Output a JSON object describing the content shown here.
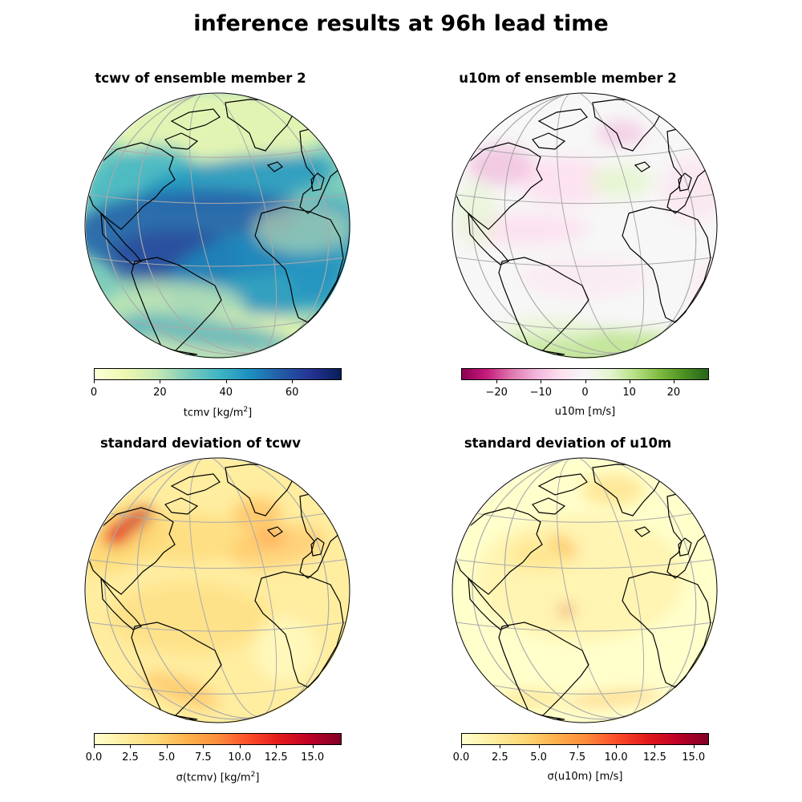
{
  "suptitle": "inference results at 96h lead time",
  "panels": [
    {
      "title": "tcwv of ensemble member 2",
      "cmap": "YlGnBu",
      "colorbar": {
        "min": 0,
        "max": 75,
        "ticks": [
          0,
          20,
          40,
          60
        ],
        "tick_labels": [
          "0",
          "20",
          "40",
          "60"
        ],
        "label": "tcmv [kg/m",
        "label_sup": "2",
        "label_suffix": "]",
        "colors": [
          "#ffffd9",
          "#edf8b1",
          "#c7e9b4",
          "#7fcdbb",
          "#41b6c4",
          "#1d91c0",
          "#225ea8",
          "#253494",
          "#081d58"
        ]
      }
    },
    {
      "title": "u10m of ensemble member 2",
      "cmap": "PiYG",
      "colorbar": {
        "min": -28,
        "max": 28,
        "ticks": [
          -20,
          -10,
          0,
          10,
          20
        ],
        "tick_labels": [
          "−20",
          "−10",
          "0",
          "10",
          "20"
        ],
        "label": "u10m [m/s]",
        "label_sup": "",
        "label_suffix": "",
        "colors": [
          "#8e0152",
          "#c51b7d",
          "#de77ae",
          "#f1b6da",
          "#fde0ef",
          "#f7f7f7",
          "#e6f5d0",
          "#b8e186",
          "#7fbc41",
          "#4d9221",
          "#276419"
        ]
      }
    },
    {
      "title": "standard deviation of tcwv",
      "cmap": "YlOrRd",
      "colorbar": {
        "min": 0,
        "max": 17,
        "ticks": [
          0,
          2.5,
          5,
          7.5,
          10,
          12.5,
          15
        ],
        "tick_labels": [
          "0.0",
          "2.5",
          "5.0",
          "7.5",
          "10.0",
          "12.5",
          "15.0"
        ],
        "label": "σ(tcmv) [kg/m",
        "label_sup": "2",
        "label_suffix": "]",
        "colors": [
          "#ffffcc",
          "#ffeda0",
          "#fed976",
          "#feb24c",
          "#fd8d3c",
          "#fc4e2a",
          "#e31a1c",
          "#bd0026",
          "#800026"
        ]
      }
    },
    {
      "title": "standard deviation of u10m",
      "cmap": "YlOrRd",
      "colorbar": {
        "min": 0,
        "max": 16,
        "ticks": [
          0,
          2.5,
          5,
          7.5,
          10,
          12.5,
          15
        ],
        "tick_labels": [
          "0.0",
          "2.5",
          "5.0",
          "7.5",
          "10.0",
          "12.5",
          "15.0"
        ],
        "label": "σ(u10m) [m/s]",
        "label_sup": "",
        "label_suffix": "",
        "colors": [
          "#ffffcc",
          "#ffeda0",
          "#fed976",
          "#feb24c",
          "#fd8d3c",
          "#fc4e2a",
          "#e31a1c",
          "#bd0026",
          "#800026"
        ]
      }
    }
  ],
  "chart_data": [
    {
      "type": "heatmap",
      "title": "tcwv of ensemble member 2",
      "projection": "orthographic",
      "colorbar_label": "tcmv [kg/m2]",
      "value_range": [
        0,
        75
      ],
      "cmap": "YlGnBu"
    },
    {
      "type": "heatmap",
      "title": "u10m of ensemble member 2",
      "projection": "orthographic",
      "colorbar_label": "u10m [m/s]",
      "value_range": [
        -28,
        28
      ],
      "cmap": "PiYG"
    },
    {
      "type": "heatmap",
      "title": "standard deviation of tcwv",
      "projection": "orthographic",
      "colorbar_label": "σ(tcmv) [kg/m2]",
      "value_range": [
        0,
        17
      ],
      "cmap": "YlOrRd"
    },
    {
      "type": "heatmap",
      "title": "standard deviation of u10m",
      "projection": "orthographic",
      "colorbar_label": "σ(u10m) [m/s]",
      "value_range": [
        0,
        16
      ],
      "cmap": "YlOrRd"
    }
  ]
}
